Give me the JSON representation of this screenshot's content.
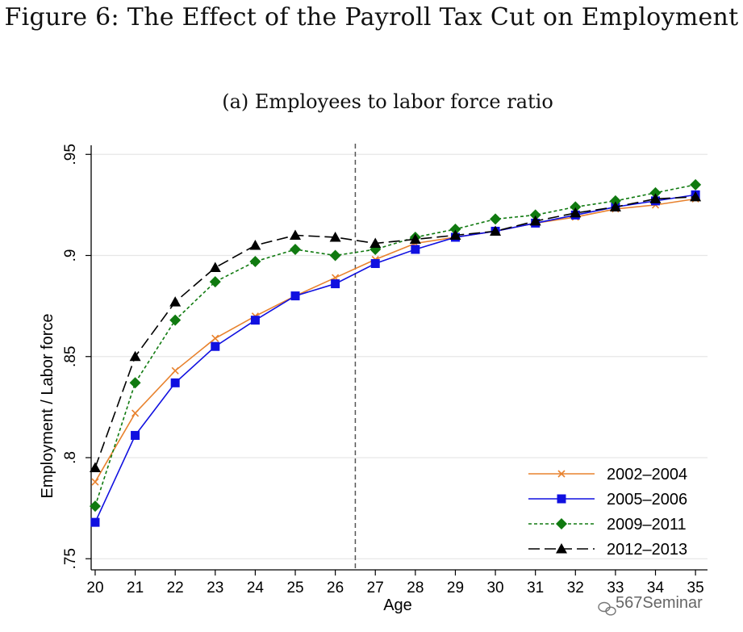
{
  "figure_title": "Figure 6: The Effect of the Payroll Tax Cut on Employment",
  "watermark": "567Seminar",
  "chart_data": {
    "type": "line",
    "title": "(a) Employees to labor force ratio",
    "xlabel": "Age",
    "ylabel": "Employment / Labor force",
    "xlim": [
      19.9,
      35.3
    ],
    "ylim": [
      0.7445,
      0.9545
    ],
    "x": [
      20,
      21,
      22,
      23,
      24,
      25,
      26,
      27,
      28,
      29,
      30,
      31,
      32,
      33,
      34,
      35
    ],
    "x_tick_labels": [
      "20",
      "21",
      "22",
      "23",
      "24",
      "25",
      "26",
      "27",
      "28",
      "29",
      "30",
      "31",
      "32",
      "33",
      "34",
      "35"
    ],
    "y_ticks": [
      0.75,
      0.8,
      0.85,
      0.9,
      0.95
    ],
    "y_tick_labels": [
      ".75",
      ".8",
      ".85",
      ".9",
      ".95"
    ],
    "grid": true,
    "reference_line_x": 26.5,
    "legend_position": "bottom-right",
    "series": [
      {
        "name": "2002–2004",
        "color": "#E8822E",
        "marker": "x",
        "dash": "solid",
        "values": [
          0.788,
          0.822,
          0.843,
          0.859,
          0.87,
          0.88,
          0.889,
          0.898,
          0.906,
          0.909,
          0.912,
          0.916,
          0.919,
          0.923,
          0.925,
          0.928
        ]
      },
      {
        "name": "2005–2006",
        "color": "#1010E0",
        "marker": "square",
        "dash": "solid",
        "values": [
          0.768,
          0.811,
          0.837,
          0.855,
          0.868,
          0.88,
          0.886,
          0.896,
          0.903,
          0.909,
          0.912,
          0.916,
          0.92,
          0.924,
          0.927,
          0.93
        ]
      },
      {
        "name": "2009–2011",
        "color": "#107A10",
        "marker": "diamond",
        "dash": "short",
        "values": [
          0.776,
          0.837,
          0.868,
          0.887,
          0.897,
          0.903,
          0.9,
          0.903,
          0.909,
          0.913,
          0.918,
          0.92,
          0.924,
          0.927,
          0.931,
          0.935
        ]
      },
      {
        "name": "2012–2013",
        "color": "#000000",
        "marker": "triangle",
        "dash": "long",
        "values": [
          0.795,
          0.85,
          0.877,
          0.894,
          0.905,
          0.91,
          0.909,
          0.906,
          0.908,
          0.91,
          0.912,
          0.917,
          0.921,
          0.924,
          0.928,
          0.929
        ]
      }
    ]
  }
}
